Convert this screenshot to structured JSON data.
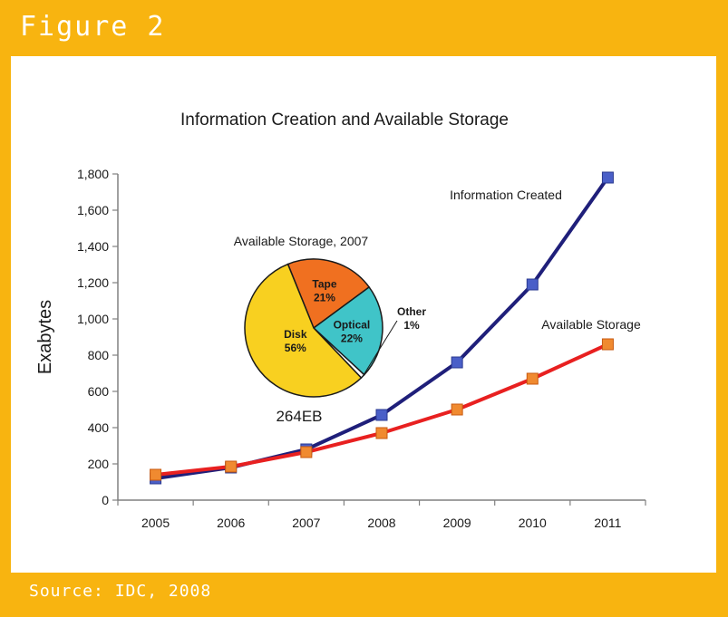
{
  "figure": {
    "label": "Figure 2",
    "source": "Source: IDC, 2008"
  },
  "colors": {
    "frame": "#f8b410",
    "information_created": "#1f1f7a",
    "available_storage": "#e82020",
    "tape": "#f07020",
    "optical": "#40c4c8",
    "other": "#ffffff",
    "disk": "#f8d020"
  },
  "chart_data": [
    {
      "type": "line",
      "title": "Information Creation and Available Storage",
      "xlabel": "",
      "ylabel": "Exabytes",
      "categories": [
        "2005",
        "2006",
        "2007",
        "2008",
        "2009",
        "2010",
        "2011"
      ],
      "yticks": [
        "0",
        "200",
        "400",
        "600",
        "800",
        "1,000",
        "1,200",
        "1,400",
        "1,600",
        "1,800"
      ],
      "ylim": [
        0,
        1800
      ],
      "grid": false,
      "series": [
        {
          "name": "Information Created",
          "values": [
            120,
            180,
            280,
            470,
            760,
            1190,
            1780
          ]
        },
        {
          "name": "Available Storage",
          "values": [
            140,
            185,
            265,
            370,
            500,
            670,
            860
          ]
        }
      ]
    },
    {
      "type": "pie",
      "title": "Available Storage, 2007",
      "total_label": "264EB",
      "slices": [
        {
          "label": "Tape",
          "value": 21,
          "value_label": "21%"
        },
        {
          "label": "Optical",
          "value": 22,
          "value_label": "22%"
        },
        {
          "label": "Other",
          "value": 1,
          "value_label": "1%"
        },
        {
          "label": "Disk",
          "value": 56,
          "value_label": "56%"
        }
      ]
    }
  ]
}
